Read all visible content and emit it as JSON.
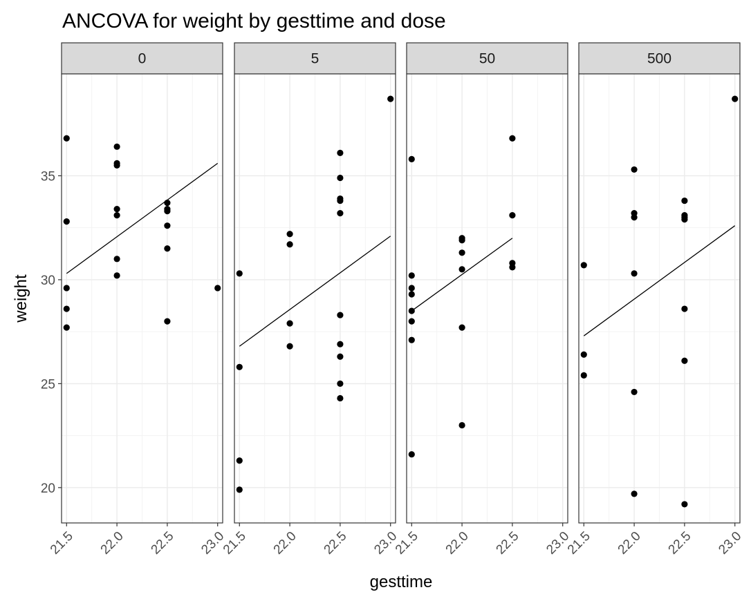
{
  "chart_data": {
    "type": "scatter",
    "title": "ANCOVA for weight by gesttime and dose",
    "xlabel": "gesttime",
    "ylabel": "weight",
    "xlim": [
      21.45,
      23.05
    ],
    "ylim": [
      18.3,
      39.9
    ],
    "x_ticks": [
      21.5,
      22.0,
      22.5,
      23.0
    ],
    "x_tick_labels": [
      "21.5",
      "22.0",
      "22.5",
      "23.0"
    ],
    "y_ticks": [
      20,
      25,
      30,
      35
    ],
    "y_tick_labels": [
      "20",
      "25",
      "30",
      "35"
    ],
    "grid": true,
    "facet_variable": "dose",
    "panels": [
      {
        "label": "0",
        "points": [
          [
            21.5,
            36.8
          ],
          [
            21.5,
            32.8
          ],
          [
            21.5,
            29.6
          ],
          [
            21.5,
            28.6
          ],
          [
            21.5,
            27.7
          ],
          [
            22.0,
            36.4
          ],
          [
            22.0,
            35.5
          ],
          [
            22.0,
            35.6
          ],
          [
            22.0,
            33.4
          ],
          [
            22.0,
            33.1
          ],
          [
            22.0,
            31.0
          ],
          [
            22.0,
            30.2
          ],
          [
            22.5,
            33.7
          ],
          [
            22.5,
            33.4
          ],
          [
            22.5,
            33.3
          ],
          [
            22.5,
            32.6
          ],
          [
            22.5,
            31.5
          ],
          [
            22.5,
            28.0
          ],
          [
            23.0,
            29.6
          ]
        ],
        "fit_line": [
          [
            21.5,
            30.3
          ],
          [
            23.0,
            35.6
          ]
        ]
      },
      {
        "label": "5",
        "points": [
          [
            21.5,
            30.3
          ],
          [
            21.5,
            25.8
          ],
          [
            21.5,
            21.3
          ],
          [
            21.5,
            19.9
          ],
          [
            22.0,
            32.2
          ],
          [
            22.0,
            31.7
          ],
          [
            22.0,
            27.9
          ],
          [
            22.0,
            26.8
          ],
          [
            22.5,
            36.1
          ],
          [
            22.5,
            34.9
          ],
          [
            22.5,
            33.9
          ],
          [
            22.5,
            33.8
          ],
          [
            22.5,
            33.2
          ],
          [
            22.5,
            28.3
          ],
          [
            22.5,
            26.9
          ],
          [
            22.5,
            26.3
          ],
          [
            22.5,
            25.0
          ],
          [
            22.5,
            24.3
          ],
          [
            23.0,
            38.7
          ]
        ],
        "fit_line": [
          [
            21.5,
            26.8
          ],
          [
            23.0,
            32.1
          ]
        ]
      },
      {
        "label": "50",
        "points": [
          [
            21.5,
            35.8
          ],
          [
            21.5,
            30.2
          ],
          [
            21.5,
            29.6
          ],
          [
            21.5,
            29.3
          ],
          [
            21.5,
            28.5
          ],
          [
            21.5,
            28.0
          ],
          [
            21.5,
            27.1
          ],
          [
            21.5,
            21.6
          ],
          [
            22.0,
            32.0
          ],
          [
            22.0,
            31.9
          ],
          [
            22.0,
            31.3
          ],
          [
            22.0,
            30.5
          ],
          [
            22.0,
            27.7
          ],
          [
            22.0,
            23.0
          ],
          [
            22.5,
            36.8
          ],
          [
            22.5,
            33.1
          ],
          [
            22.5,
            30.8
          ],
          [
            22.5,
            30.6
          ]
        ],
        "fit_line": [
          [
            21.5,
            28.5
          ],
          [
            22.5,
            32.0
          ]
        ]
      },
      {
        "label": "500",
        "points": [
          [
            21.5,
            30.7
          ],
          [
            21.5,
            26.4
          ],
          [
            21.5,
            25.4
          ],
          [
            22.0,
            35.3
          ],
          [
            22.0,
            33.2
          ],
          [
            22.0,
            33.0
          ],
          [
            22.0,
            30.3
          ],
          [
            22.0,
            24.6
          ],
          [
            22.0,
            19.7
          ],
          [
            22.5,
            33.8
          ],
          [
            22.5,
            33.1
          ],
          [
            22.5,
            33.0
          ],
          [
            22.5,
            32.9
          ],
          [
            22.5,
            28.6
          ],
          [
            22.5,
            26.1
          ],
          [
            22.5,
            19.2
          ],
          [
            23.0,
            38.7
          ]
        ],
        "fit_line": [
          [
            21.5,
            27.3
          ],
          [
            23.0,
            32.6
          ]
        ]
      }
    ],
    "colors": {
      "point": "#000000",
      "line": "#000000",
      "grid_major": "#ebebeb",
      "grid_minor": "#f3f3f3",
      "strip_fill": "#d9d9d9",
      "panel_border": "#333333"
    }
  }
}
